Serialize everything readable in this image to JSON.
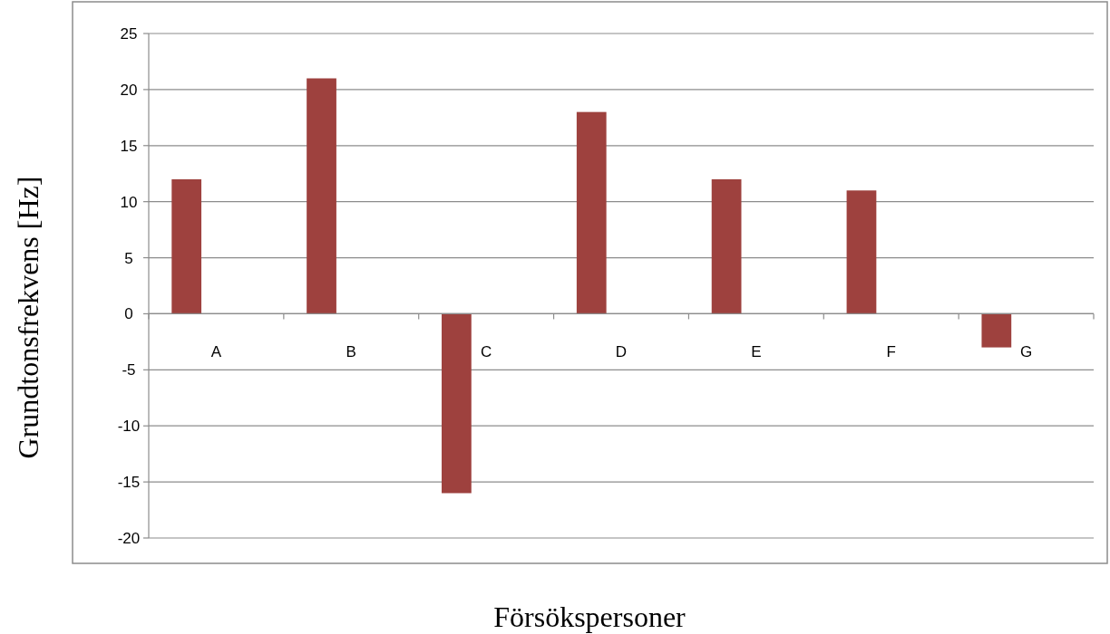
{
  "chart_data": {
    "type": "bar",
    "xlabel": "Försökspersoner",
    "ylabel": "Grundtonsfrekvens [Hz]",
    "categories": [
      "A",
      "B",
      "C",
      "D",
      "E",
      "F",
      "G"
    ],
    "values": [
      12,
      21,
      -16,
      18,
      12,
      11,
      -3
    ],
    "color": "#9e413e",
    "ylim": [
      -20,
      25
    ],
    "yticks": [
      -20,
      -15,
      -10,
      -5,
      0,
      5,
      10,
      15,
      20,
      25
    ],
    "grid": "y"
  }
}
